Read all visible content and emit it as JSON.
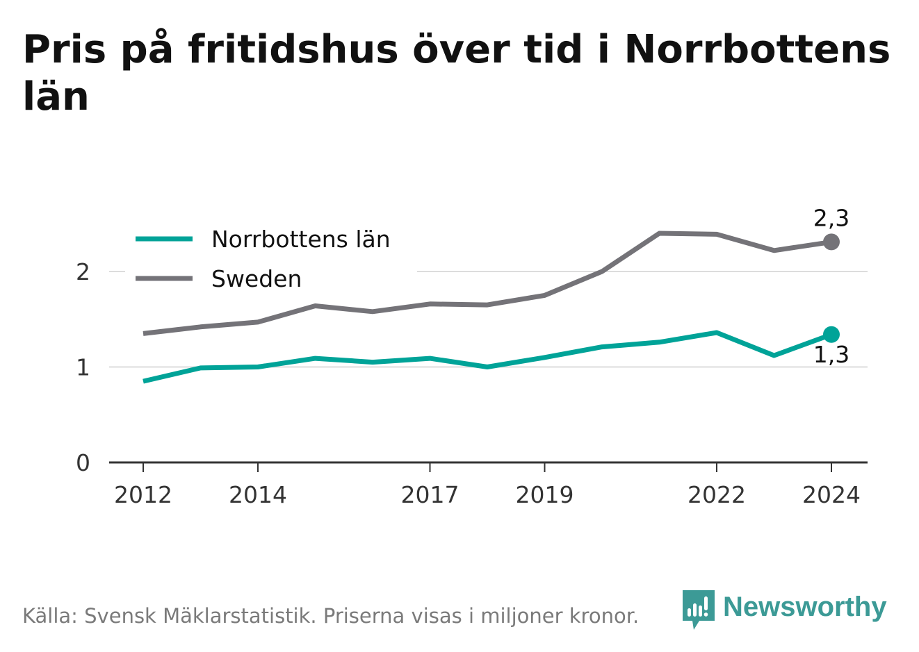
{
  "title": "Pris på fritidshus över tid i Norrbottens län",
  "footer": {
    "source": "Källa: Svensk Mäklarstatistik. Priserna visas i miljoner kronor."
  },
  "brand": {
    "name": "Newsworthy",
    "icon": "newsworthy-logo-icon",
    "color": "#3c9a96"
  },
  "chart_data": {
    "type": "line",
    "title": "Pris på fritidshus över tid i Norrbottens län",
    "xlabel": "",
    "ylabel": "",
    "x": [
      2012,
      2013,
      2014,
      2015,
      2016,
      2017,
      2018,
      2019,
      2020,
      2021,
      2022,
      2023,
      2024
    ],
    "x_tick_labels": [
      "2012",
      "2014",
      "2017",
      "2019",
      "2022",
      "2024"
    ],
    "x_tick_values": [
      2012,
      2014,
      2017,
      2019,
      2022,
      2024
    ],
    "y_tick_labels": [
      "0",
      "1",
      "2"
    ],
    "y_tick_values": [
      0,
      1,
      2
    ],
    "ylim": [
      0,
      2.5
    ],
    "xlim": [
      2011.4,
      2024.6
    ],
    "grid": true,
    "legend_position": "top-left",
    "series": [
      {
        "name": "Norrbottens län",
        "color": "#00a398",
        "values": [
          0.85,
          0.99,
          1.0,
          1.09,
          1.05,
          1.09,
          1.0,
          1.1,
          1.21,
          1.26,
          1.36,
          1.12,
          1.34
        ],
        "end_label": "1,3",
        "end_label_position": "below"
      },
      {
        "name": "Sweden",
        "color": "#747378",
        "values": [
          1.35,
          1.42,
          1.47,
          1.64,
          1.58,
          1.66,
          1.65,
          1.75,
          2.0,
          2.4,
          2.39,
          2.22,
          2.31
        ],
        "end_label": "2,3",
        "end_label_position": "above"
      }
    ]
  }
}
